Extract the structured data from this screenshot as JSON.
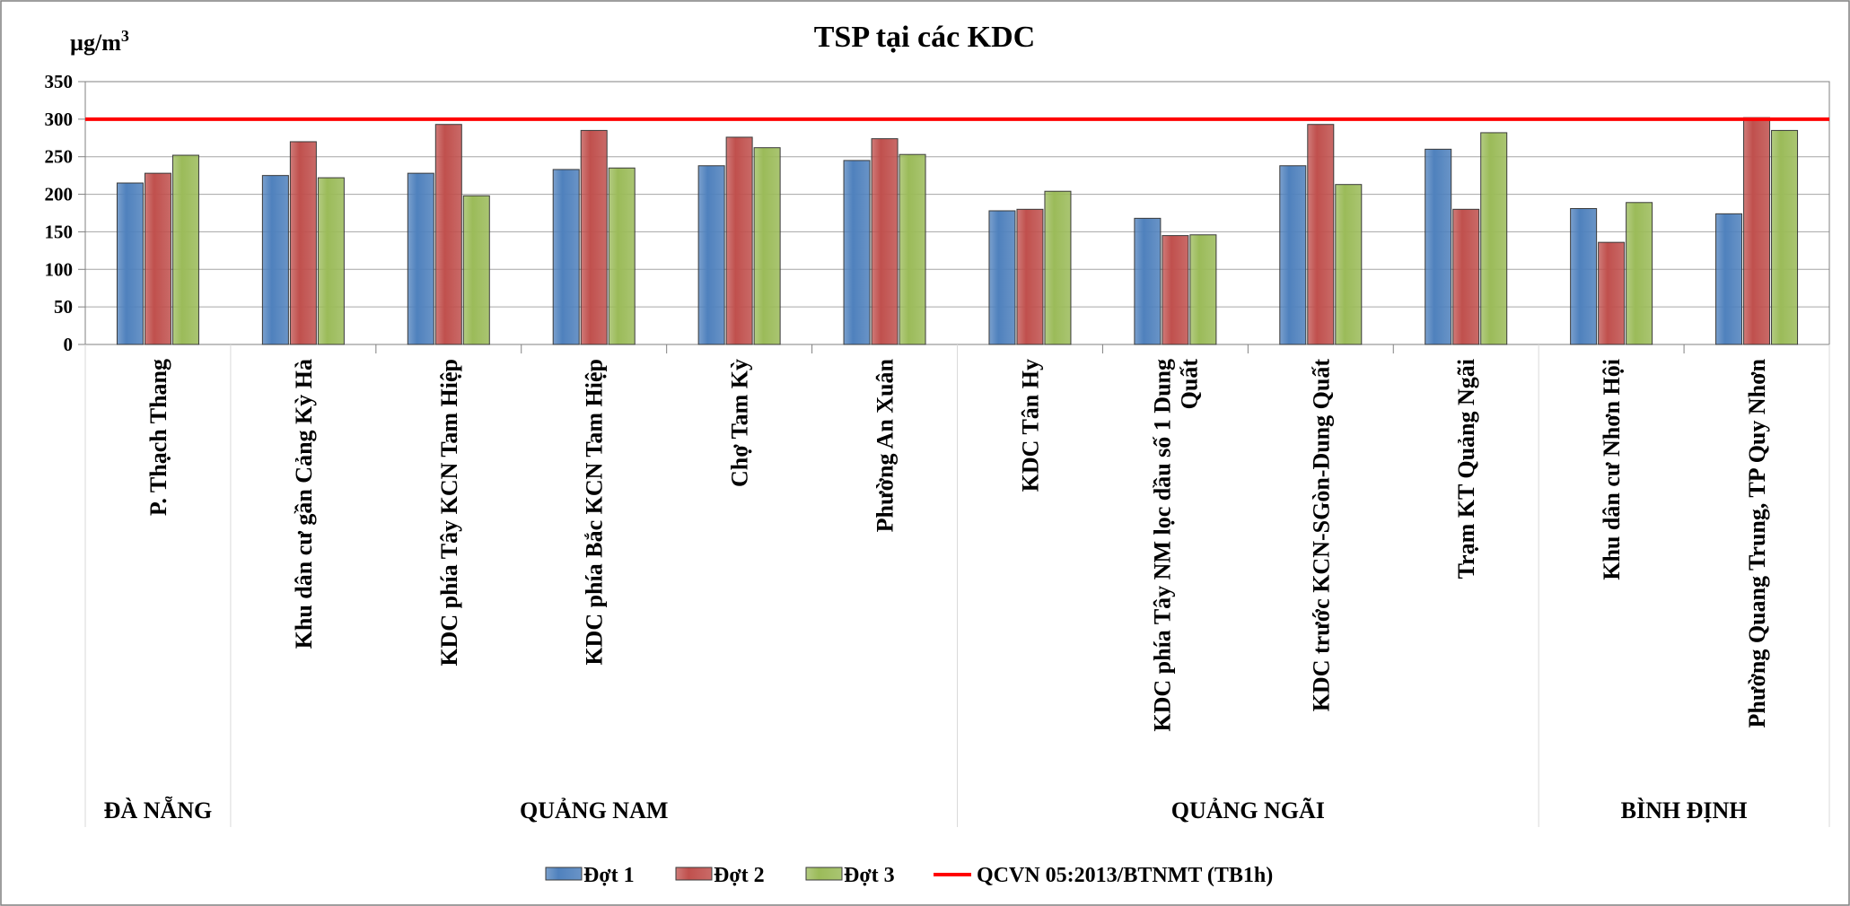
{
  "chart_data": {
    "type": "bar",
    "title": "TSP tại các KDC",
    "unit_label": "µg/m",
    "unit_superscript": "3",
    "ylim": [
      0,
      350
    ],
    "yticks": [
      0,
      50,
      100,
      150,
      200,
      250,
      300,
      350
    ],
    "grid": true,
    "legend_position": "bottom",
    "categories": [
      [
        "P. Thạch  Thang"
      ],
      [
        "Khu dân cư gần  Cảng Kỳ Hà"
      ],
      [
        "KDC phía  Tây  KCN Tam Hiệp"
      ],
      [
        "KDC phía Bắc KCN Tam Hiệp"
      ],
      [
        "Chợ Tam Kỳ"
      ],
      [
        "Phường An Xuân"
      ],
      [
        "KDC Tân Hy"
      ],
      [
        "KDC phía Tây NM lọc dầu số 1 Dung",
        "Quất"
      ],
      [
        "KDC trước KCN-SGòn-Dung Quất"
      ],
      [
        "Trạm KT Quảng Ngãi"
      ],
      [
        "Khu dân cư Nhơn Hội"
      ],
      [
        "Phường Quang Trung, TP Quy Nhơn"
      ]
    ],
    "groups": [
      {
        "label": "ĐÀ NẴNG",
        "count": 1
      },
      {
        "label": "QUẢNG NAM",
        "count": 5
      },
      {
        "label": "QUẢNG NGÃI",
        "count": 4
      },
      {
        "label": "BÌNH ĐỊNH",
        "count": 2
      }
    ],
    "series": [
      {
        "name": "Đợt 1",
        "color": "#4F81BD",
        "values": [
          215,
          225,
          228,
          233,
          238,
          245,
          178,
          168,
          238,
          260,
          181,
          174
        ]
      },
      {
        "name": "Đợt 2",
        "color": "#C0504D",
        "values": [
          228,
          270,
          293,
          285,
          276,
          274,
          180,
          145,
          293,
          180,
          136,
          302
        ]
      },
      {
        "name": "Đợt 3",
        "color": "#9BBB59",
        "values": [
          252,
          222,
          198,
          235,
          262,
          253,
          204,
          146,
          213,
          282,
          189,
          285
        ]
      }
    ],
    "reference_line": {
      "name": "QCVN 05:2013/BTNMT (TB1h)",
      "value": 300,
      "color": "#FF0000"
    }
  }
}
